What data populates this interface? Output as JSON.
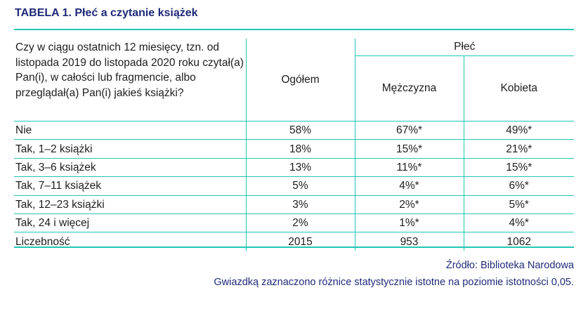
{
  "title": "TABELA 1. Płeć a czytanie książek",
  "table": {
    "question": "Czy w ciągu ostatnich 12 miesięcy, tzn. od listopada 2019 do listopada 2020 roku czytał(a) Pan(i), w całości lub fragmencie, albo przeglądał(a) Pan(i) jakieś książki?",
    "col_total": "Ogółem",
    "col_group": "Płeć",
    "col_male": "Mężczyzna",
    "col_female": "Kobieta",
    "rows": [
      {
        "label": "Nie",
        "total": "58%",
        "male": "67%*",
        "female": "49%*"
      },
      {
        "label": "Tak, 1–2 książki",
        "total": "18%",
        "male": "15%*",
        "female": "21%*"
      },
      {
        "label": "Tak, 3–6 książek",
        "total": "13%",
        "male": "11%*",
        "female": "15%*"
      },
      {
        "label": "Tak, 7–11 książek",
        "total": "5%",
        "male": "4%*",
        "female": "6%*"
      },
      {
        "label": "Tak, 12–23 książki",
        "total": "3%",
        "male": "2%*",
        "female": "5%*"
      },
      {
        "label": "Tak, 24 i więcej",
        "total": "2%",
        "male": "1%*",
        "female": "4%*"
      },
      {
        "label": "Liczebność",
        "total": "2015",
        "male": "953",
        "female": "1062"
      }
    ]
  },
  "source": "Źródło: Biblioteka Narodowa",
  "note": "Gwiazdką zaznaczono różnice statystycznie istotne na poziomie istotności 0,05.",
  "colors": {
    "accent": "#22c6b3",
    "title": "#1e2a78"
  }
}
